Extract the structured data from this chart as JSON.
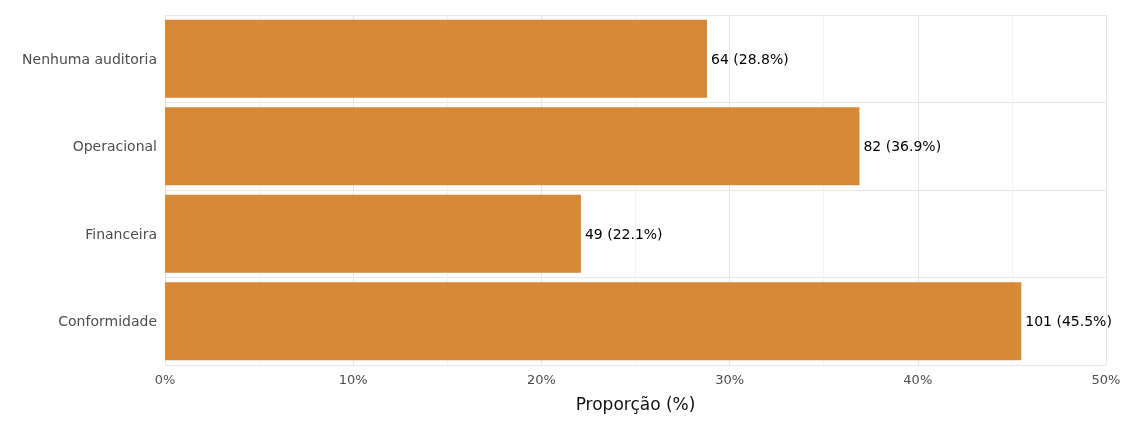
{
  "chart_data": {
    "type": "bar",
    "orientation": "horizontal",
    "xlabel": "Proporção (%)",
    "categories": [
      "Nenhuma auditoria",
      "Operacional",
      "Financeira",
      "Conformidade"
    ],
    "values": [
      28.8,
      36.9,
      22.1,
      45.5
    ],
    "value_labels": [
      "64 (28.8%)",
      "82 (36.9%)",
      "49 (22.1%)",
      "101 (45.5%)"
    ],
    "color": "#d68a37",
    "xlim": [
      0,
      50
    ],
    "xticks": [
      {
        "value": 0,
        "label": "0%"
      },
      {
        "value": 5,
        "label": null
      },
      {
        "value": 10,
        "label": "10%"
      },
      {
        "value": 15,
        "label": null
      },
      {
        "value": 20,
        "label": "20%"
      },
      {
        "value": 25,
        "label": null
      },
      {
        "value": 30,
        "label": "30%"
      },
      {
        "value": 35,
        "label": null
      },
      {
        "value": 40,
        "label": "40%"
      },
      {
        "value": 45,
        "label": null
      },
      {
        "value": 50,
        "label": "50%"
      }
    ],
    "grid": true
  }
}
